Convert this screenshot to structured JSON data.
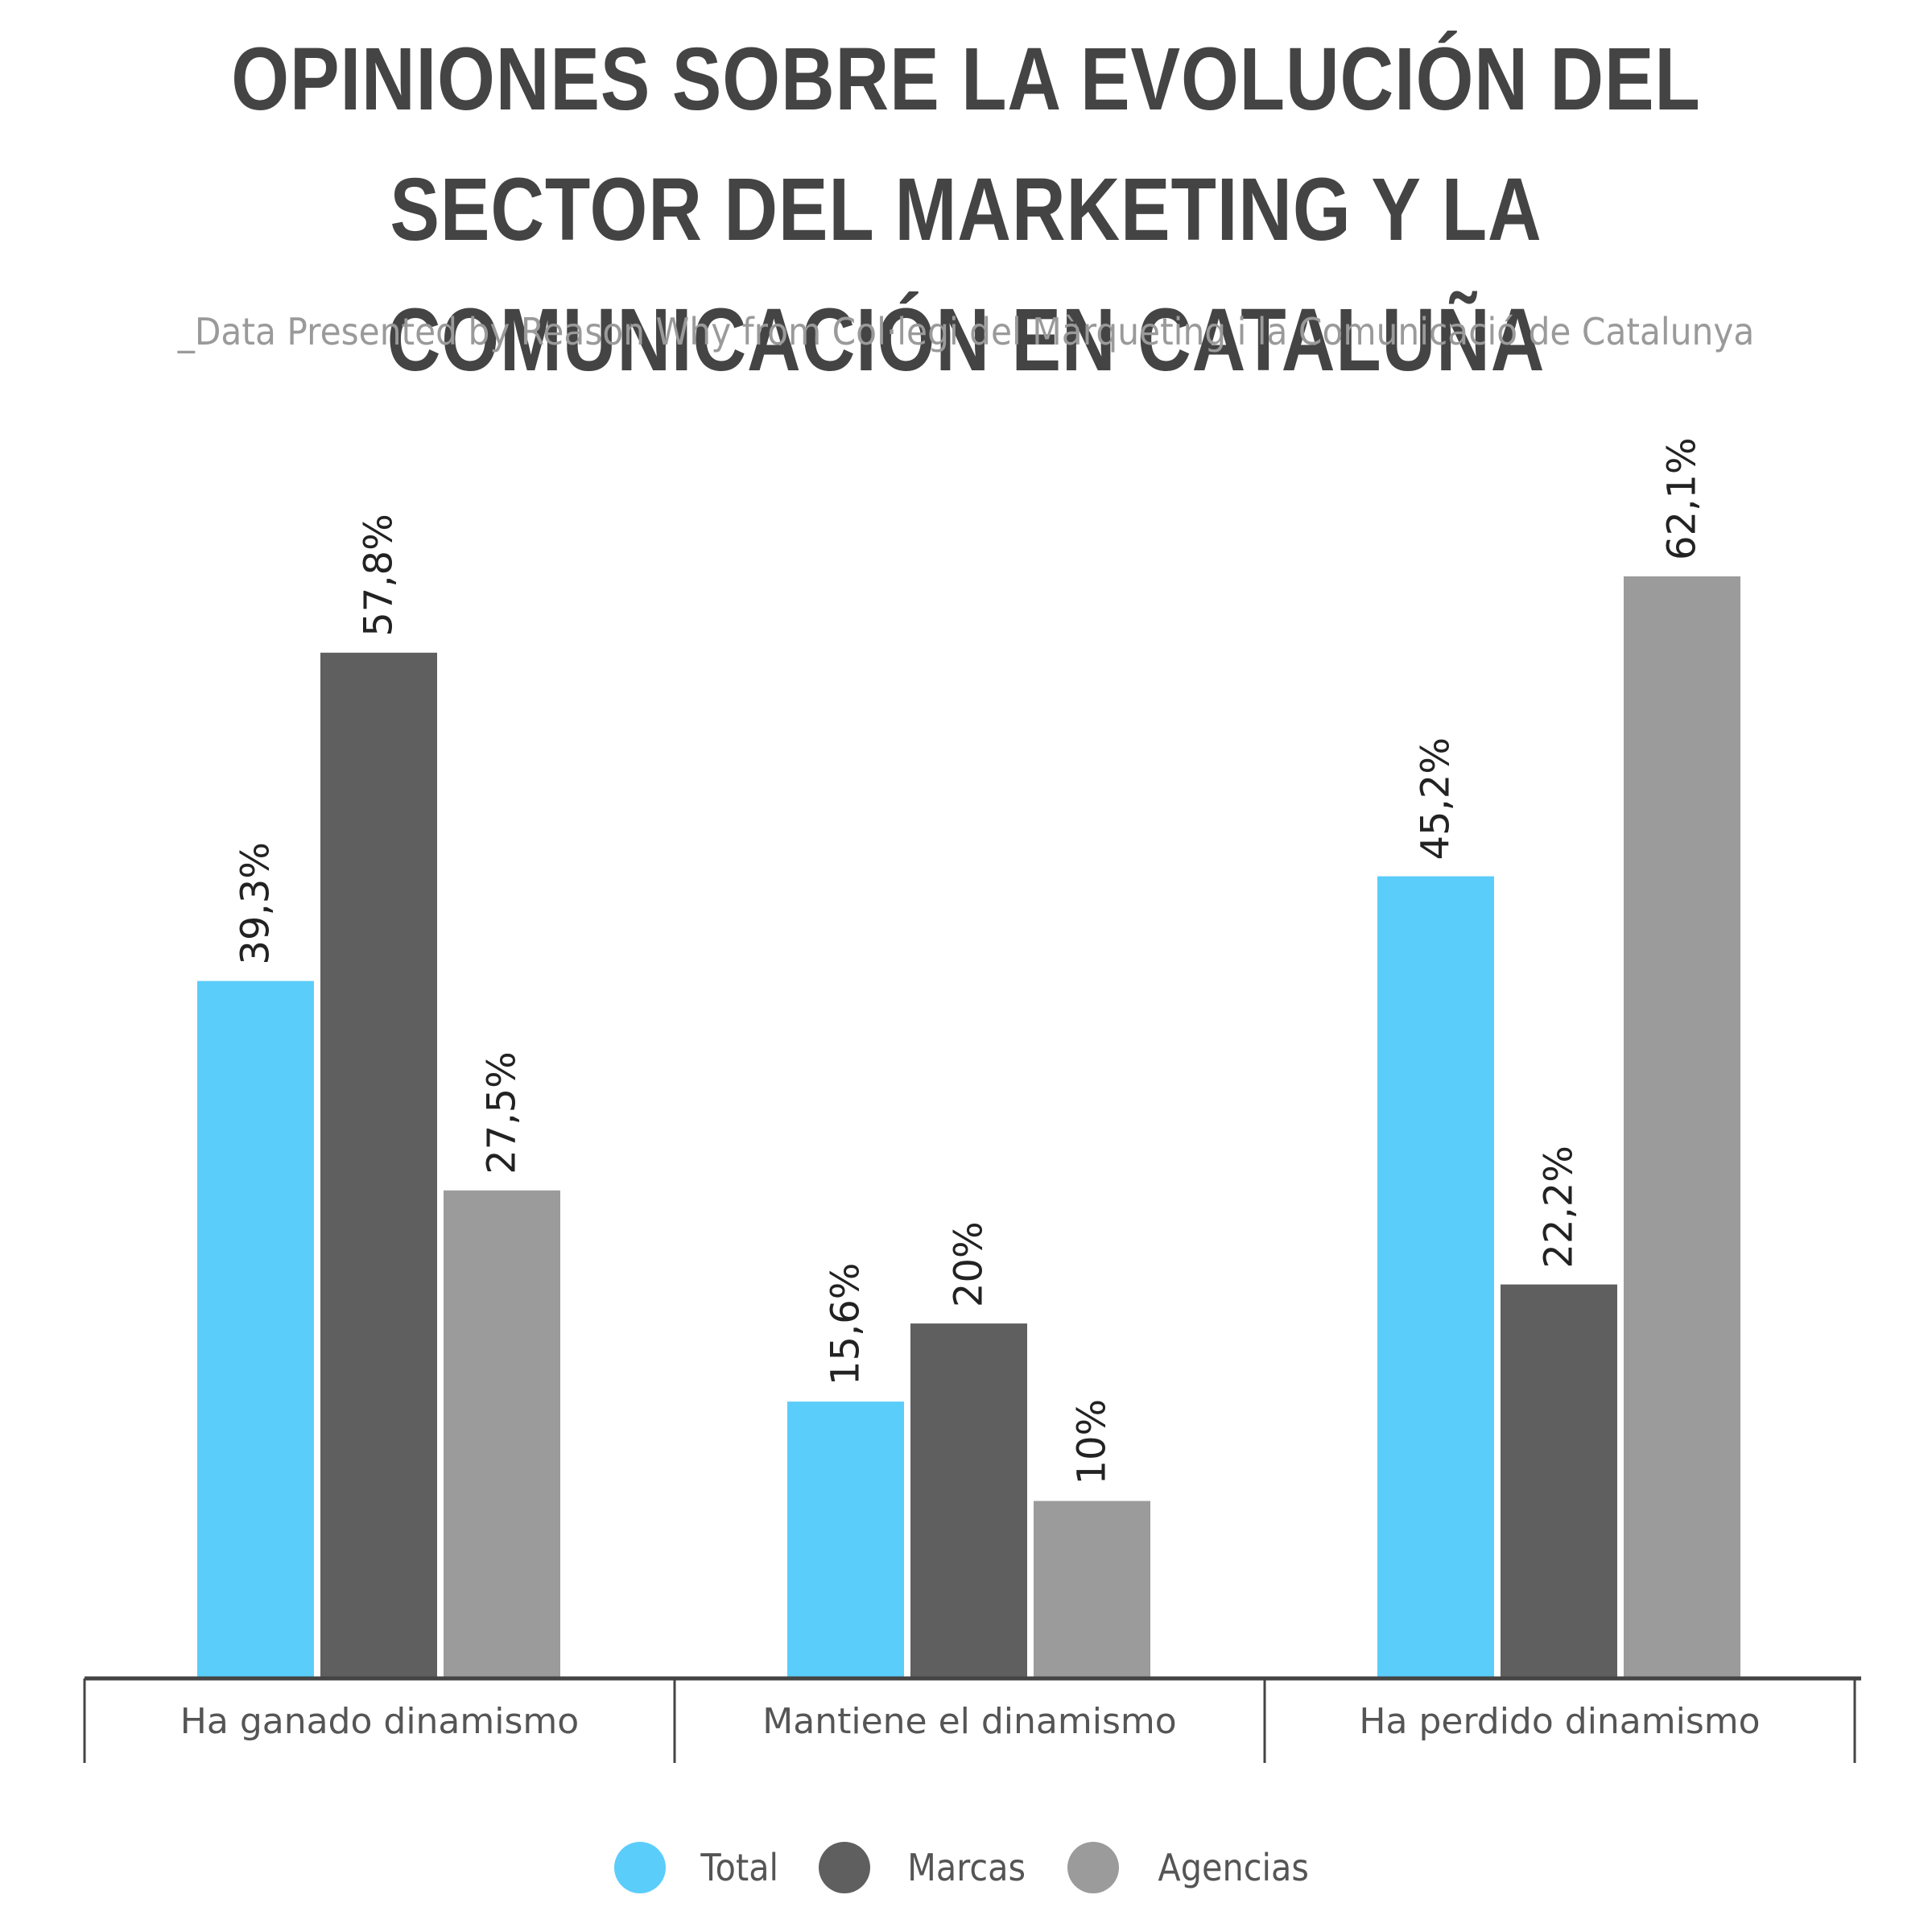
{
  "title": "OPINIONES SOBRE LA EVOLUCIÓN DEL SECTOR DEL MARKETING Y LA COMUNICACIÓN EN CATALUÑA",
  "subtitle": "_Data Presented by Reason Why from Col·legi del Màrqueting i la Comunicació de Catalunya",
  "colors": {
    "total": "#5bcdfb",
    "marcas": "#5f5f5f",
    "agencias": "#9b9b9b",
    "axis": "#444444"
  },
  "chart_data": {
    "type": "bar",
    "title": "OPINIONES SOBRE LA EVOLUCIÓN DEL SECTOR DEL MARKETING Y LA COMUNICACIÓN EN CATALUÑA",
    "subtitle": "_Data Presented by Reason Why from Col·legi del Màrqueting i la Comunicació de Catalunya",
    "categories": [
      "Ha ganado dinamismo",
      "Mantiene el dinamismo",
      "Ha perdido dinamismo"
    ],
    "series": [
      {
        "name": "Total",
        "color": "#5bcdfb",
        "values": [
          39.3,
          15.6,
          45.2
        ],
        "labels": [
          "39,3%",
          "15,6%",
          "45,2%"
        ]
      },
      {
        "name": "Marcas",
        "color": "#5f5f5f",
        "values": [
          57.8,
          20,
          22.2
        ],
        "labels": [
          "57,8%",
          "20%",
          "22,2%"
        ]
      },
      {
        "name": "Agencias",
        "color": "#9b9b9b",
        "values": [
          27.5,
          10,
          62.1
        ],
        "labels": [
          "27,5%",
          "10%",
          "62,1%"
        ]
      }
    ],
    "xlabel": "",
    "ylabel": "",
    "ylim": [
      0,
      62.1
    ],
    "grid": false,
    "legend_position": "bottom"
  }
}
